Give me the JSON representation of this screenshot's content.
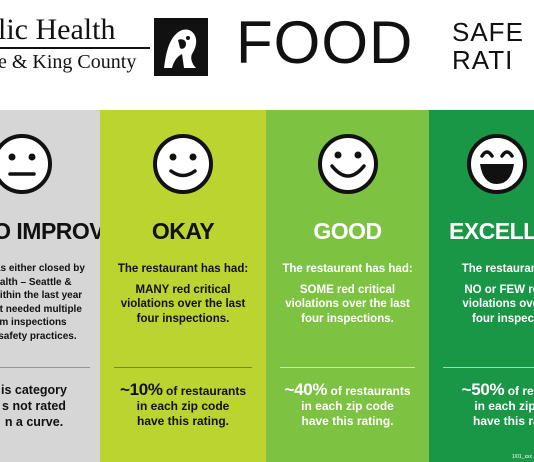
{
  "header": {
    "org_name": "lic Health",
    "org_sub": "e & King County",
    "food": "FOOD",
    "safety_line1": "SAFE",
    "safety_line2": "RATI"
  },
  "columns": [
    {
      "rating": "TO IMPROVE",
      "desc": [
        "t was either closed by",
        "ealth – Seattle &",
        "y within the last year",
        "rant needed multiple",
        "m inspections",
        "d safety practices."
      ],
      "stat": [
        "is category",
        "s not rated",
        "n a curve."
      ],
      "face": "neutral-face-icon",
      "bg": "#d6d6d7"
    },
    {
      "rating": "OKAY",
      "lead": "The restaurant has had:",
      "desc": [
        "MANY red critical",
        "violations over the last",
        "four inspections."
      ],
      "stat_big": "~10%",
      "stat_rest": " of restaurants",
      "stat_lines": [
        "in each zip code",
        "have this rating."
      ],
      "face": "smile-face-icon",
      "bg": "#bcd430"
    },
    {
      "rating": "GOOD",
      "lead": "The restaurant has had:",
      "desc": [
        "SOME red critical",
        "violations over the last",
        "four inspections."
      ],
      "stat_big": "~40%",
      "stat_rest": " of restaurants",
      "stat_lines": [
        "in each zip code",
        "have this rating."
      ],
      "face": "big-smile-face-icon",
      "bg": "#7ec242"
    },
    {
      "rating": "EXCELLE",
      "lead": "The restaurant ha",
      "desc": [
        "NO or FEW red c",
        "violations over th",
        "four inspectio"
      ],
      "stat_big": "~50%",
      "stat_rest": " of restau",
      "stat_lines": [
        "in each zip c",
        "have this rati"
      ],
      "face": "grin-face-icon",
      "bg": "#1a9647"
    }
  ],
  "footer_tiny": "1/01_xxx"
}
